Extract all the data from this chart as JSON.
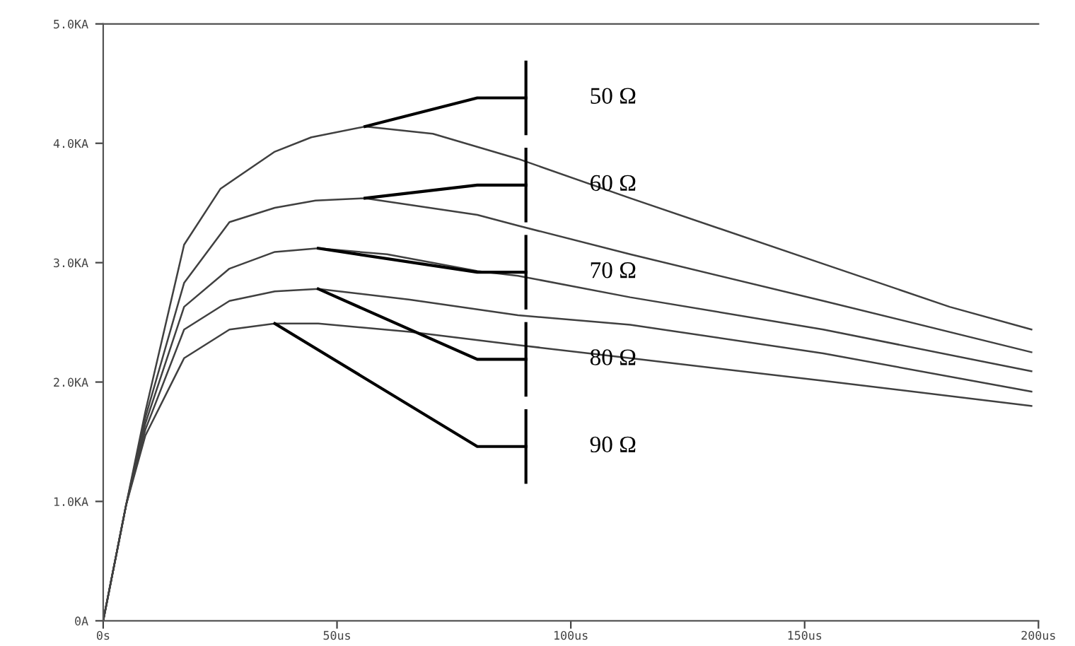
{
  "chart_data": {
    "type": "line",
    "xlim": [
      0,
      200
    ],
    "xticks": [
      {
        "value": 0,
        "label": "0s"
      },
      {
        "value": 50,
        "label": "50us"
      },
      {
        "value": 100,
        "label": "100us"
      },
      {
        "value": 150,
        "label": "150us"
      },
      {
        "value": 200,
        "label": "200us"
      }
    ],
    "ylim": [
      0,
      5
    ],
    "yticks": [
      {
        "value": 0,
        "label": "0A"
      },
      {
        "value": 1,
        "label": "1.0KA"
      },
      {
        "value": 2,
        "label": "2.0KA"
      },
      {
        "value": 3,
        "label": "3.0KA"
      },
      {
        "value": 4,
        "label": "4.0KA"
      },
      {
        "value": 5,
        "label": "5.0KA"
      }
    ],
    "grid": false,
    "legend": false,
    "series": [
      {
        "color": "#404040",
        "x": [
          0,
          4.9,
          9,
          17.3,
          25.1,
          36.7,
          44.5,
          56,
          70.5,
          88.7,
          112.7,
          154,
          181,
          198.5
        ],
        "values": [
          0,
          0.97,
          1.75,
          3.15,
          3.62,
          3.93,
          4.05,
          4.14,
          4.08,
          3.87,
          3.54,
          2.99,
          2.63,
          2.44
        ]
      },
      {
        "color": "#404040",
        "x": [
          0,
          4.9,
          9,
          17.3,
          27,
          36.7,
          45.4,
          56,
          80,
          88.7,
          112.7,
          154,
          198.5
        ],
        "values": [
          0,
          0.97,
          1.7,
          2.83,
          3.34,
          3.46,
          3.52,
          3.54,
          3.4,
          3.31,
          3.07,
          2.68,
          2.25
        ]
      },
      {
        "color": "#404040",
        "x": [
          0,
          4.9,
          9,
          17.3,
          27,
          36.7,
          46,
          60.7,
          80,
          88.7,
          112.7,
          154,
          198.5
        ],
        "values": [
          0,
          0.97,
          1.65,
          2.63,
          2.95,
          3.09,
          3.12,
          3.07,
          2.93,
          2.89,
          2.71,
          2.44,
          2.09
        ]
      },
      {
        "color": "#404040",
        "x": [
          0,
          4.9,
          9,
          17.3,
          27,
          36.7,
          46,
          65.6,
          88.7,
          112.7,
          154,
          198.5
        ],
        "values": [
          0,
          0.97,
          1.6,
          2.44,
          2.68,
          2.76,
          2.78,
          2.69,
          2.56,
          2.48,
          2.24,
          1.92
        ]
      },
      {
        "color": "#404040",
        "x": [
          0,
          4.9,
          9,
          17.3,
          27,
          36.7,
          46,
          65.6,
          88.7,
          112.7,
          154,
          198.5
        ],
        "values": [
          0,
          0.97,
          1.55,
          2.2,
          2.44,
          2.49,
          2.49,
          2.42,
          2.31,
          2.2,
          2.01,
          1.8
        ]
      }
    ],
    "annotations": [
      "50 Ω",
      "60 Ω",
      "70 Ω",
      "80 Ω",
      "90 Ω"
    ]
  }
}
